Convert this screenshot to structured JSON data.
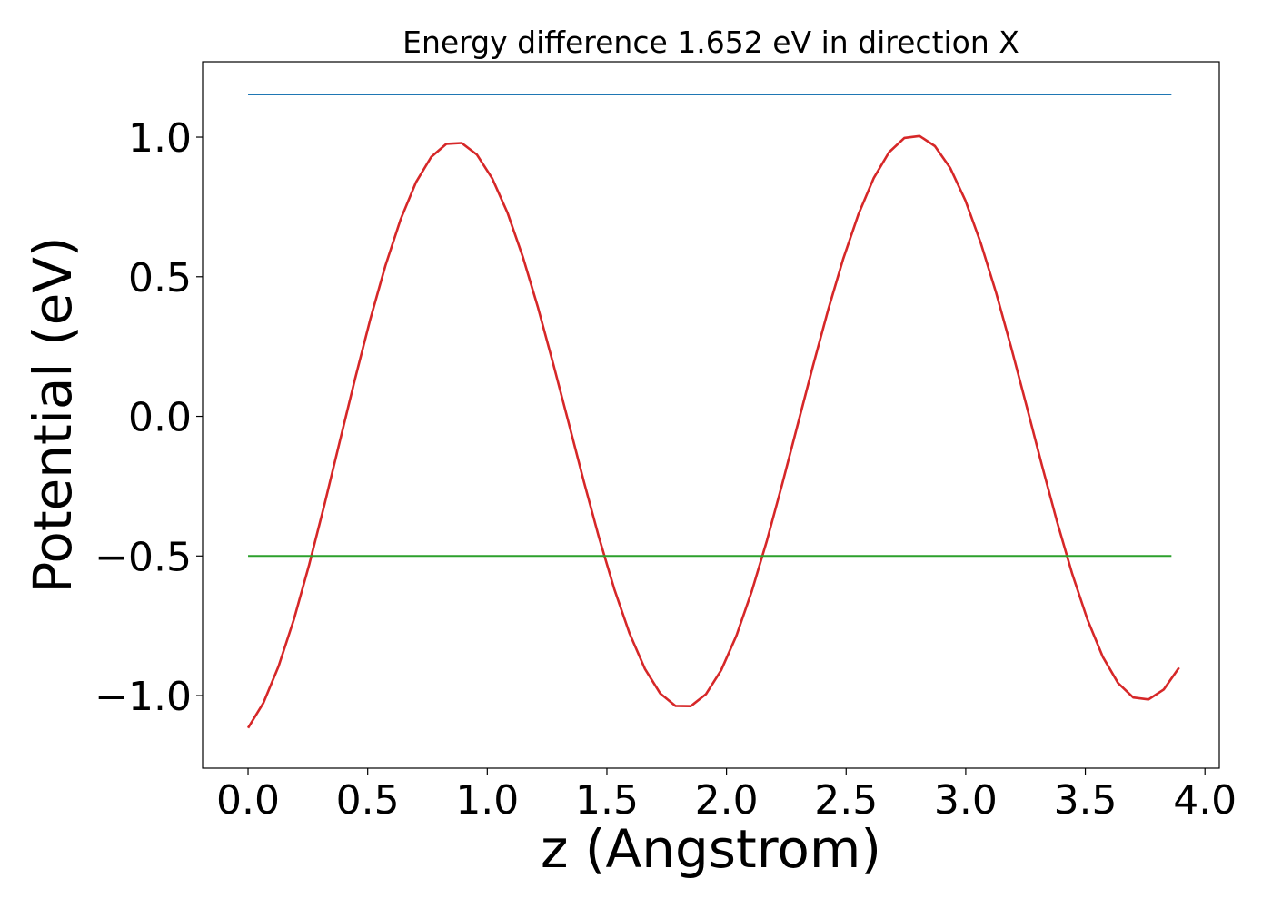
{
  "chart_data": {
    "type": "line",
    "title": "Energy difference 1.652 eV in direction X",
    "xlabel": "z (Angstrom)",
    "ylabel": "Potential (eV)",
    "xlim": [
      -0.19,
      4.06
    ],
    "ylim": [
      -1.26,
      1.27
    ],
    "grid": false,
    "xticks": [
      0.0,
      0.5,
      1.0,
      1.5,
      2.0,
      2.5,
      3.0,
      3.5,
      4.0
    ],
    "xtick_labels": [
      "0.0",
      "0.5",
      "1.0",
      "1.5",
      "2.0",
      "2.5",
      "3.0",
      "3.5",
      "4.0"
    ],
    "yticks": [
      -1.0,
      -0.5,
      0.0,
      0.5,
      1.0
    ],
    "ytick_labels": [
      "−1.0",
      "−0.5",
      "0.0",
      "0.5",
      "1.0"
    ],
    "series": [
      {
        "color": "#d62728",
        "style": "curve",
        "x": [
          0.0,
          0.0638,
          0.1276,
          0.1914,
          0.2552,
          0.319,
          0.3828,
          0.4466,
          0.5104,
          0.5742,
          0.638,
          0.7018,
          0.7656,
          0.8294,
          0.8932,
          0.957,
          1.0208,
          1.0846,
          1.1484,
          1.2122,
          1.276,
          1.3398,
          1.4036,
          1.4674,
          1.5312,
          1.595,
          1.6588,
          1.7226,
          1.7864,
          1.8502,
          1.914,
          1.9778,
          2.0416,
          2.1054,
          2.1692,
          2.233,
          2.2968,
          2.3606,
          2.4244,
          2.4882,
          2.552,
          2.6158,
          2.6796,
          2.7434,
          2.8072,
          2.871,
          2.9348,
          2.9986,
          3.0624,
          3.1262,
          3.19,
          3.2538,
          3.3176,
          3.3814,
          3.4452,
          3.509,
          3.5728,
          3.6366,
          3.7004,
          3.7642,
          3.828,
          3.8918
        ],
        "values": [
          -1.116,
          -1.027,
          -0.895,
          -0.728,
          -0.532,
          -0.317,
          -0.092,
          0.132,
          0.346,
          0.54,
          0.706,
          0.838,
          0.929,
          0.976,
          0.979,
          0.937,
          0.852,
          0.729,
          0.572,
          0.389,
          0.187,
          -0.022,
          -0.233,
          -0.435,
          -0.619,
          -0.778,
          -0.904,
          -0.992,
          -1.037,
          -1.038,
          -0.995,
          -0.909,
          -0.785,
          -0.627,
          -0.444,
          -0.242,
          -0.032,
          0.178,
          0.38,
          0.565,
          0.725,
          0.854,
          0.946,
          0.997,
          1.004,
          0.968,
          0.89,
          0.773,
          0.622,
          0.445,
          0.247,
          0.039,
          -0.172,
          -0.376,
          -0.564,
          -0.728,
          -0.861,
          -0.955,
          -1.007,
          -1.014,
          -0.978,
          -0.9
        ]
      },
      {
        "color": "#1f77b4",
        "style": "hline",
        "x": [
          0.0,
          3.86
        ],
        "values": [
          1.153,
          1.153
        ]
      },
      {
        "color": "#2ca02c",
        "style": "hline",
        "x": [
          0.0,
          3.86
        ],
        "values": [
          -0.5,
          -0.5
        ]
      }
    ]
  }
}
